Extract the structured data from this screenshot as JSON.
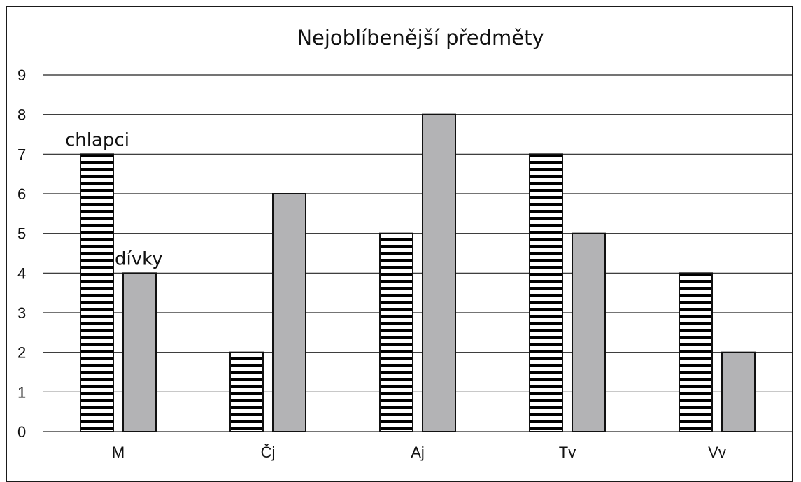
{
  "chart_data": {
    "type": "bar",
    "title": "Nejoblíbenější předměty",
    "xlabel": "",
    "ylabel": "",
    "categories": [
      "M",
      "Čj",
      "Aj",
      "Tv",
      "Vv"
    ],
    "series": [
      {
        "name": "chlapci",
        "values": [
          7,
          2,
          5,
          7,
          4
        ],
        "pattern": "horizontal-stripes",
        "color": "#000000"
      },
      {
        "name": "dívky",
        "values": [
          4,
          6,
          8,
          5,
          2
        ],
        "pattern": "solid",
        "color": "#b3b3b5"
      }
    ],
    "ylim": [
      0,
      9
    ],
    "yticks": [
      "0",
      "1",
      "2",
      "3",
      "4",
      "5",
      "6",
      "7",
      "8",
      "9"
    ],
    "grid": true,
    "legend": "inline labels above first group"
  }
}
